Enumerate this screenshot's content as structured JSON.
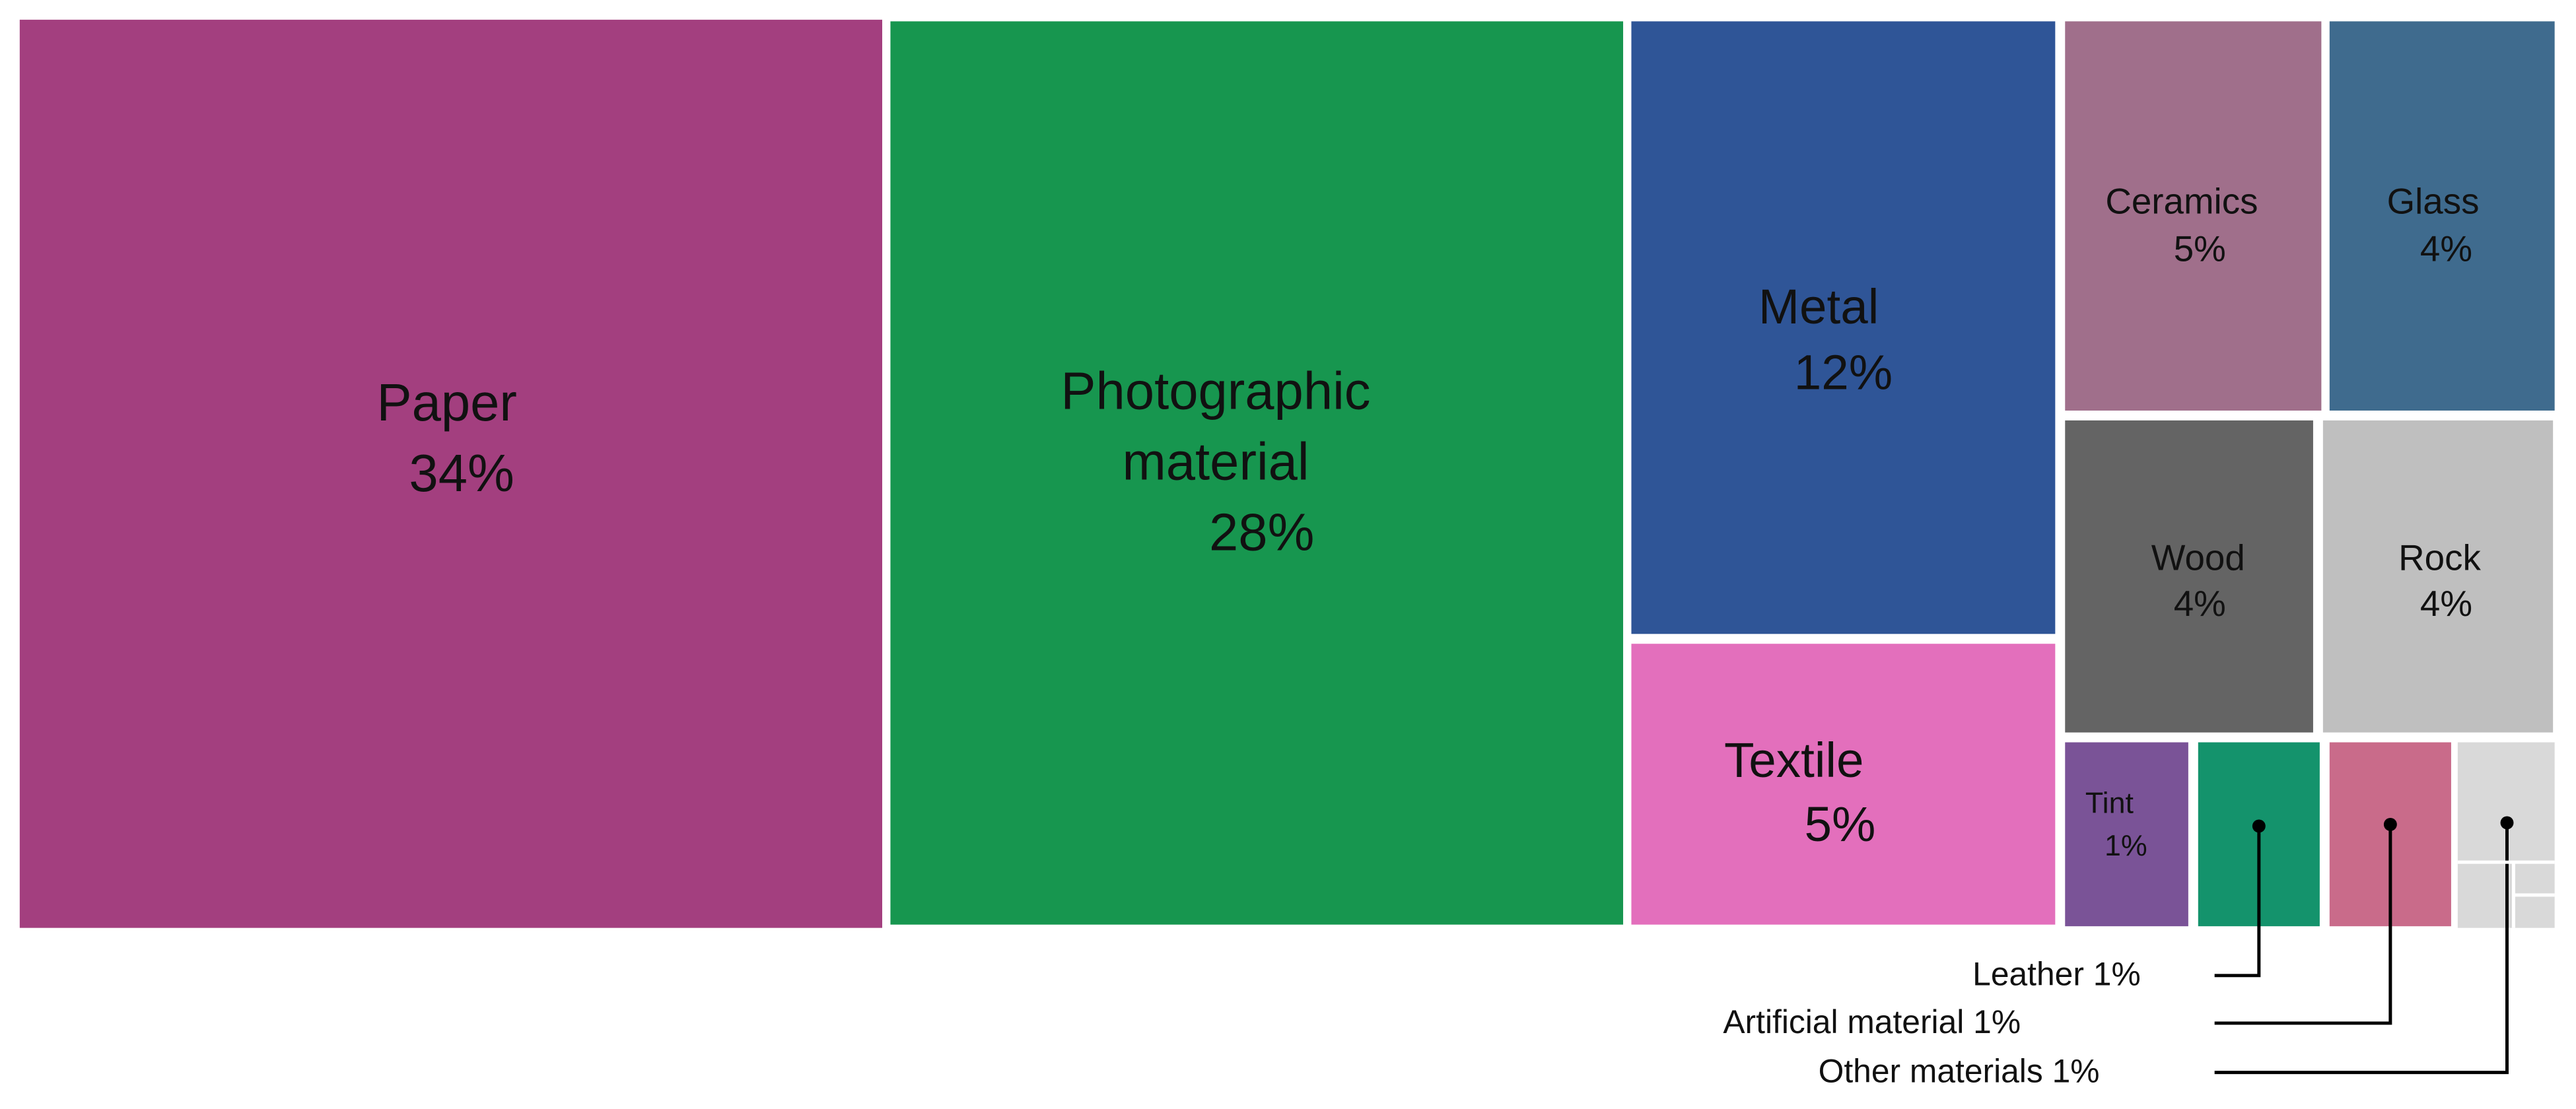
{
  "chart_data": {
    "type": "treemap",
    "categories": [
      "Paper",
      "Photographic material",
      "Metal",
      "Textile",
      "Ceramics",
      "Glass",
      "Wood",
      "Rock",
      "Tint",
      "Leather",
      "Artificial material",
      "Other materials"
    ],
    "values": [
      34,
      28,
      12,
      5,
      5,
      4,
      4,
      4,
      1,
      1,
      1,
      1
    ],
    "value_labels": [
      "34%",
      "28%",
      "12%",
      "5%",
      "5%",
      "4%",
      "4%",
      "4%",
      "1%",
      "1%",
      "1%",
      "1%"
    ],
    "colors": [
      "#a33f7f",
      "#17964f",
      "#2f5597",
      "#e36fbc",
      "#a06f8b",
      "#3f6b8e",
      "#646464",
      "#bfbfbf",
      "#7a5397",
      "#14936c",
      "#c96b8a",
      "#d9d9d9"
    ]
  }
}
